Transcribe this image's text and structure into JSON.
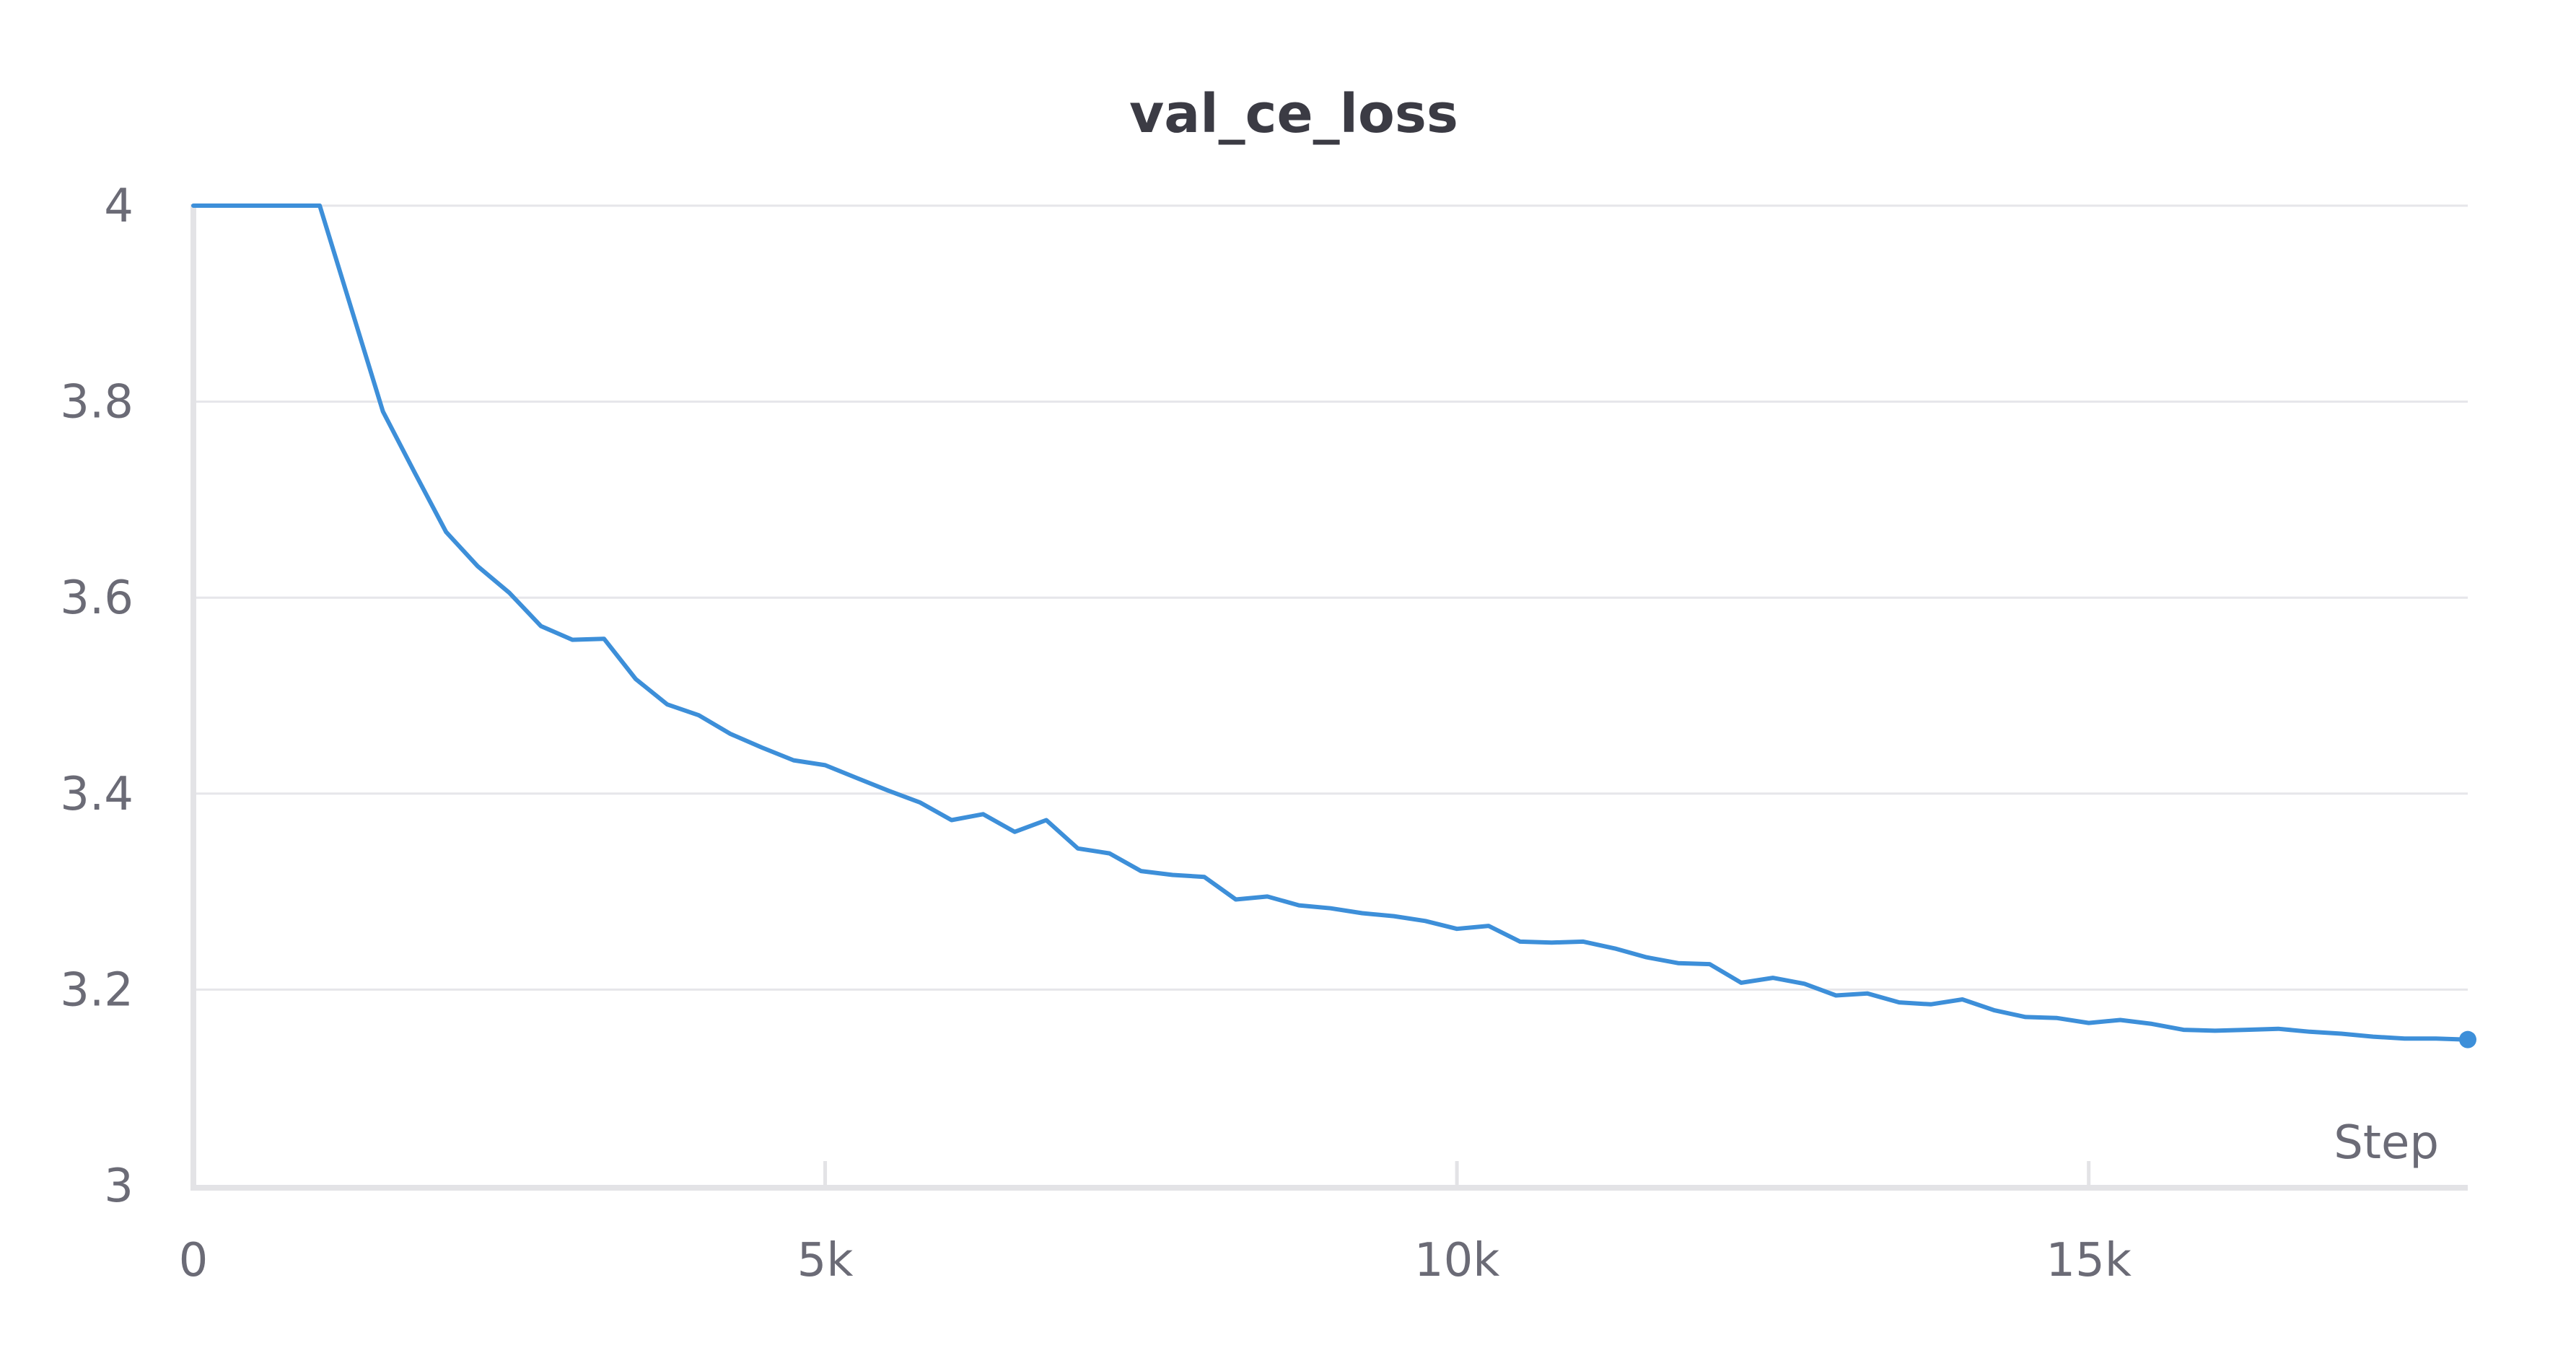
{
  "chart_data": {
    "type": "line",
    "title": "val_ce_loss",
    "xlabel": "Step",
    "ylabel": "",
    "xlim": [
      0,
      18000
    ],
    "ylim": [
      3,
      4
    ],
    "x_ticks": [
      0,
      5000,
      10000,
      15000
    ],
    "x_tick_labels": [
      "0",
      "5k",
      "10k",
      "15k"
    ],
    "y_ticks": [
      3,
      3.2,
      3.4,
      3.6,
      3.8,
      4
    ],
    "y_tick_labels": [
      "3",
      "3.2",
      "3.4",
      "3.6",
      "3.8",
      "4"
    ],
    "grid": "horizontal",
    "series": [
      {
        "color": "#3d8fd9",
        "x": [
          0,
          1000,
          1500,
          1750,
          2000,
          2250,
          2500,
          2750,
          3000,
          3250,
          3500,
          3750,
          4000,
          4250,
          4500,
          4750,
          5000,
          5250,
          5500,
          5750,
          6000,
          6250,
          6500,
          6750,
          7000,
          7250,
          7500,
          7750,
          8000,
          8250,
          8500,
          8750,
          9000,
          9250,
          9500,
          9750,
          10000,
          10250,
          10500,
          10750,
          11000,
          11250,
          11500,
          11750,
          12000,
          12250,
          12500,
          12750,
          13000,
          13250,
          13500,
          13750,
          14000,
          14250,
          14500,
          14750,
          15000,
          15250,
          15500,
          15750,
          16000,
          16250,
          16500,
          16750,
          17000,
          17250,
          17500,
          17750,
          18000
        ],
        "y": [
          4.0,
          4.0,
          3.79,
          3.728,
          3.667,
          3.632,
          3.605,
          3.571,
          3.557,
          3.558,
          3.517,
          3.491,
          3.48,
          3.461,
          3.447,
          3.434,
          3.429,
          3.416,
          3.403,
          3.391,
          3.373,
          3.379,
          3.361,
          3.373,
          3.344,
          3.339,
          3.321,
          3.317,
          3.315,
          3.292,
          3.295,
          3.286,
          3.283,
          3.278,
          3.275,
          3.27,
          3.262,
          3.265,
          3.249,
          3.248,
          3.249,
          3.242,
          3.233,
          3.227,
          3.226,
          3.207,
          3.212,
          3.206,
          3.194,
          3.196,
          3.187,
          3.185,
          3.19,
          3.179,
          3.172,
          3.171,
          3.166,
          3.169,
          3.165,
          3.159,
          3.158,
          3.159,
          3.16,
          3.157,
          3.155,
          3.152,
          3.15,
          3.15,
          3.149
        ]
      }
    ]
  }
}
